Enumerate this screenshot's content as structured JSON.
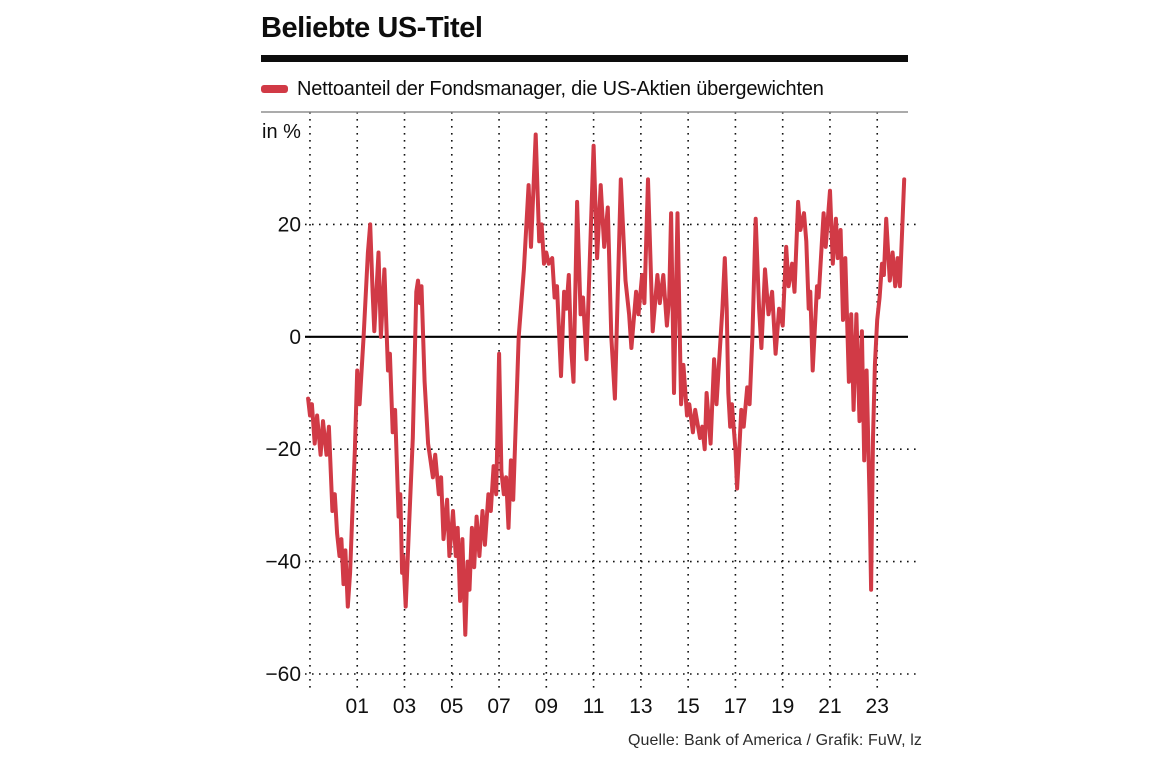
{
  "header": {
    "title": "Beliebte US-Titel"
  },
  "legend": {
    "label": "Nettoanteil der Fondsmanager, die US-Aktien übergewichten"
  },
  "footer": {
    "source": "Quelle: Bank of America / Grafik: FuW, lz"
  },
  "colors": {
    "series_red": "#d13a46",
    "axis_black": "#111111",
    "frame_gray": "#8f8f8f"
  },
  "chart_data": {
    "type": "line",
    "title": "Beliebte US-Titel",
    "xlabel": "",
    "ylabel": "in %",
    "y_unit": "in %",
    "x_domain": [
      1998.79,
      2024.64
    ],
    "y_domain": [
      -60,
      40
    ],
    "grid": "dotted",
    "legend_position": "top-left",
    "x_gridline_years": [
      1999,
      2001,
      2003,
      2005,
      2007,
      2009,
      2011,
      2013,
      2015,
      2017,
      2019,
      2021,
      2023
    ],
    "x_ticks": [
      {
        "label": "01",
        "year": 2001
      },
      {
        "label": "03",
        "year": 2003
      },
      {
        "label": "05",
        "year": 2005
      },
      {
        "label": "07",
        "year": 2007
      },
      {
        "label": "09",
        "year": 2009
      },
      {
        "label": "11",
        "year": 2011
      },
      {
        "label": "13",
        "year": 2013
      },
      {
        "label": "15",
        "year": 2015
      },
      {
        "label": "17",
        "year": 2017
      },
      {
        "label": "19",
        "year": 2019
      },
      {
        "label": "21",
        "year": 2021
      },
      {
        "label": "23",
        "year": 2023
      }
    ],
    "y_ticks": [
      {
        "label": "20",
        "value": 20,
        "gridline": true
      },
      {
        "label": "0",
        "value": 0,
        "gridline": false
      },
      {
        "label": "−20",
        "value": -20,
        "gridline": true
      },
      {
        "label": "−40",
        "value": -40,
        "gridline": true
      },
      {
        "label": "−60",
        "value": -60,
        "gridline": true
      }
    ],
    "zero_line_value": 0,
    "series": [
      {
        "name": "Nettoanteil der Fondsmanager, die US-Aktien übergewichten",
        "color": "#d13a46",
        "points": [
          [
            1998.92,
            -11
          ],
          [
            1999.0,
            -14
          ],
          [
            1999.08,
            -12
          ],
          [
            1999.2,
            -19
          ],
          [
            1999.3,
            -14
          ],
          [
            1999.45,
            -21
          ],
          [
            1999.55,
            -15
          ],
          [
            1999.7,
            -21
          ],
          [
            1999.8,
            -16
          ],
          [
            1999.95,
            -31
          ],
          [
            2000.05,
            -28
          ],
          [
            2000.15,
            -35
          ],
          [
            2000.25,
            -39
          ],
          [
            2000.33,
            -36
          ],
          [
            2000.42,
            -44
          ],
          [
            2000.5,
            -38
          ],
          [
            2000.6,
            -48
          ],
          [
            2000.7,
            -42
          ],
          [
            2000.78,
            -33
          ],
          [
            2000.9,
            -20
          ],
          [
            2001.0,
            -6
          ],
          [
            2001.1,
            -12
          ],
          [
            2001.27,
            0
          ],
          [
            2001.45,
            15
          ],
          [
            2001.55,
            20
          ],
          [
            2001.65,
            8
          ],
          [
            2001.72,
            1
          ],
          [
            2001.9,
            15
          ],
          [
            2002.0,
            0
          ],
          [
            2002.15,
            12
          ],
          [
            2002.3,
            -6
          ],
          [
            2002.38,
            -3
          ],
          [
            2002.5,
            -17
          ],
          [
            2002.6,
            -13
          ],
          [
            2002.75,
            -32
          ],
          [
            2002.82,
            -28
          ],
          [
            2002.9,
            -42
          ],
          [
            2002.95,
            -39
          ],
          [
            2003.05,
            -48
          ],
          [
            2003.2,
            -33
          ],
          [
            2003.35,
            -18
          ],
          [
            2003.5,
            8
          ],
          [
            2003.57,
            10
          ],
          [
            2003.65,
            6
          ],
          [
            2003.72,
            9
          ],
          [
            2003.85,
            -8
          ],
          [
            2004.0,
            -19
          ],
          [
            2004.1,
            -22
          ],
          [
            2004.2,
            -25
          ],
          [
            2004.3,
            -21
          ],
          [
            2004.45,
            -28
          ],
          [
            2004.55,
            -25
          ],
          [
            2004.65,
            -36
          ],
          [
            2004.8,
            -29
          ],
          [
            2004.9,
            -39
          ],
          [
            2005.05,
            -31
          ],
          [
            2005.17,
            -39
          ],
          [
            2005.25,
            -34
          ],
          [
            2005.35,
            -47
          ],
          [
            2005.45,
            -36
          ],
          [
            2005.57,
            -53
          ],
          [
            2005.67,
            -40
          ],
          [
            2005.75,
            -45
          ],
          [
            2005.85,
            -34
          ],
          [
            2005.95,
            -41
          ],
          [
            2006.05,
            -32
          ],
          [
            2006.17,
            -39
          ],
          [
            2006.3,
            -31
          ],
          [
            2006.4,
            -37
          ],
          [
            2006.55,
            -28
          ],
          [
            2006.65,
            -31
          ],
          [
            2006.77,
            -23
          ],
          [
            2006.88,
            -28
          ],
          [
            2007.0,
            -3
          ],
          [
            2007.1,
            -24
          ],
          [
            2007.2,
            -28
          ],
          [
            2007.3,
            -25
          ],
          [
            2007.4,
            -34
          ],
          [
            2007.5,
            -22
          ],
          [
            2007.6,
            -29
          ],
          [
            2007.83,
            0
          ],
          [
            2008.05,
            12
          ],
          [
            2008.25,
            27
          ],
          [
            2008.35,
            16
          ],
          [
            2008.55,
            36
          ],
          [
            2008.7,
            17
          ],
          [
            2008.8,
            20
          ],
          [
            2008.9,
            13
          ],
          [
            2009.0,
            15
          ],
          [
            2009.1,
            13
          ],
          [
            2009.25,
            14
          ],
          [
            2009.35,
            7
          ],
          [
            2009.45,
            9
          ],
          [
            2009.62,
            -7
          ],
          [
            2009.75,
            8
          ],
          [
            2009.85,
            5
          ],
          [
            2009.95,
            11
          ],
          [
            2010.05,
            -2
          ],
          [
            2010.15,
            -8
          ],
          [
            2010.3,
            24
          ],
          [
            2010.45,
            4
          ],
          [
            2010.55,
            7
          ],
          [
            2010.7,
            -4
          ],
          [
            2011.0,
            34
          ],
          [
            2011.15,
            14
          ],
          [
            2011.3,
            27
          ],
          [
            2011.45,
            16
          ],
          [
            2011.6,
            23
          ],
          [
            2011.75,
            0
          ],
          [
            2011.9,
            -11
          ],
          [
            2012.15,
            28
          ],
          [
            2012.35,
            10
          ],
          [
            2012.5,
            4
          ],
          [
            2012.6,
            -2
          ],
          [
            2012.8,
            8
          ],
          [
            2012.9,
            4
          ],
          [
            2013.05,
            11
          ],
          [
            2013.15,
            6
          ],
          [
            2013.3,
            28
          ],
          [
            2013.5,
            1
          ],
          [
            2013.7,
            11
          ],
          [
            2013.8,
            6
          ],
          [
            2013.95,
            11
          ],
          [
            2014.1,
            2
          ],
          [
            2014.2,
            7
          ],
          [
            2014.28,
            22
          ],
          [
            2014.4,
            -10
          ],
          [
            2014.55,
            22
          ],
          [
            2014.7,
            -12
          ],
          [
            2014.8,
            -5
          ],
          [
            2014.95,
            -14
          ],
          [
            2015.05,
            -12
          ],
          [
            2015.2,
            -17
          ],
          [
            2015.3,
            -13
          ],
          [
            2015.5,
            -18
          ],
          [
            2015.6,
            -16
          ],
          [
            2015.7,
            -20
          ],
          [
            2015.78,
            -10
          ],
          [
            2015.95,
            -19
          ],
          [
            2016.1,
            -4
          ],
          [
            2016.2,
            -12
          ],
          [
            2016.3,
            -5
          ],
          [
            2016.45,
            5
          ],
          [
            2016.55,
            14
          ],
          [
            2016.63,
            5
          ],
          [
            2016.7,
            -10
          ],
          [
            2016.78,
            -16
          ],
          [
            2016.85,
            -12
          ],
          [
            2017.0,
            -20
          ],
          [
            2017.07,
            -27
          ],
          [
            2017.15,
            -21
          ],
          [
            2017.25,
            -13
          ],
          [
            2017.35,
            -16
          ],
          [
            2017.5,
            -9
          ],
          [
            2017.6,
            -12
          ],
          [
            2017.72,
            0
          ],
          [
            2017.86,
            21
          ],
          [
            2018.0,
            5
          ],
          [
            2018.1,
            -2
          ],
          [
            2018.25,
            12
          ],
          [
            2018.4,
            4
          ],
          [
            2018.55,
            8
          ],
          [
            2018.7,
            -3
          ],
          [
            2018.85,
            5
          ],
          [
            2019.0,
            2
          ],
          [
            2019.15,
            16
          ],
          [
            2019.25,
            9
          ],
          [
            2019.4,
            13
          ],
          [
            2019.5,
            8
          ],
          [
            2019.65,
            24
          ],
          [
            2019.75,
            19
          ],
          [
            2019.9,
            22
          ],
          [
            2020.0,
            17
          ],
          [
            2020.1,
            5
          ],
          [
            2020.17,
            8
          ],
          [
            2020.27,
            -6
          ],
          [
            2020.45,
            9
          ],
          [
            2020.52,
            7
          ],
          [
            2020.73,
            22
          ],
          [
            2020.82,
            16
          ],
          [
            2021.0,
            26
          ],
          [
            2021.12,
            13
          ],
          [
            2021.25,
            21
          ],
          [
            2021.33,
            14
          ],
          [
            2021.45,
            19
          ],
          [
            2021.55,
            3
          ],
          [
            2021.65,
            14
          ],
          [
            2021.8,
            -8
          ],
          [
            2021.9,
            4
          ],
          [
            2022.0,
            -13
          ],
          [
            2022.12,
            4
          ],
          [
            2022.25,
            -15
          ],
          [
            2022.35,
            1
          ],
          [
            2022.45,
            -22
          ],
          [
            2022.55,
            -6
          ],
          [
            2022.68,
            -30
          ],
          [
            2022.74,
            -45
          ],
          [
            2022.82,
            -18
          ],
          [
            2022.9,
            -5
          ],
          [
            2023.0,
            3
          ],
          [
            2023.1,
            7
          ],
          [
            2023.2,
            13
          ],
          [
            2023.28,
            11
          ],
          [
            2023.38,
            21
          ],
          [
            2023.53,
            10
          ],
          [
            2023.65,
            15
          ],
          [
            2023.76,
            9
          ],
          [
            2023.86,
            14
          ],
          [
            2023.96,
            9
          ],
          [
            2024.14,
            28
          ]
        ]
      }
    ]
  }
}
